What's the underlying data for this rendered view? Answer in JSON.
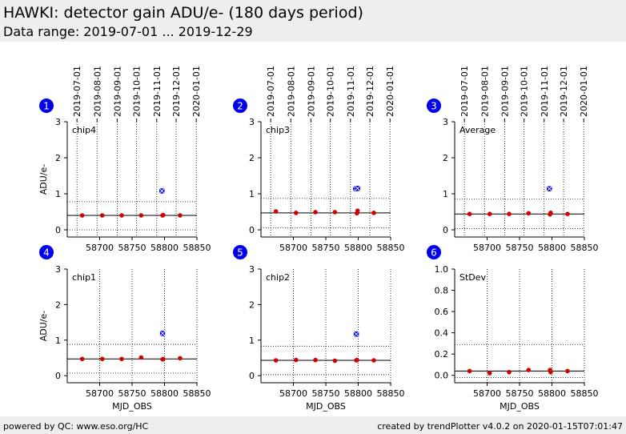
{
  "header": {
    "title": "HAWKI: detector gain ADU/e- (180 days period)",
    "subtitle": "Data range: 2019-07-01 ... 2019-12-29"
  },
  "footer": {
    "left": "powered by QC: www.eso.org/HC",
    "right": "created by trendPlotter v4.0.2 on 2020-01-15T07:01:47"
  },
  "colors": {
    "normal": "#d40000",
    "highlight": "#0000ee",
    "badge": "#0000ee",
    "header_bg": "#eeeeee"
  },
  "chart_data": [
    {
      "type": "scatter",
      "panel": 1,
      "label": "chip4",
      "ylabel": "ADU/e-",
      "xlabel": "",
      "xlim": [
        58650,
        58850
      ],
      "ylim": [
        -0.2,
        3.0
      ],
      "yticks": [
        "0",
        "1",
        "2",
        "3"
      ],
      "yticks_values": [
        0,
        1,
        2,
        3
      ],
      "xticks": [
        "58700",
        "58750",
        "58800",
        "58850"
      ],
      "xticks_values": [
        58700,
        58750,
        58800,
        58850
      ],
      "date_ticks": [
        "2019-07-01",
        "2019-08-01",
        "2019-09-01",
        "2019-10-01",
        "2019-11-01",
        "2019-12-01",
        "2020-01-01"
      ],
      "date_ticks_mjd": [
        58665,
        58696,
        58727,
        58757,
        58788,
        58818,
        58849
      ],
      "mean": 0.4,
      "limits": [
        0.0,
        0.78
      ],
      "series": [
        {
          "x": [
            58673,
            58704,
            58734,
            58764,
            58797,
            58798,
            58824
          ],
          "y": [
            0.4,
            0.4,
            0.4,
            0.4,
            0.4,
            0.41,
            0.4
          ]
        },
        {
          "x": [
            58796
          ],
          "y": [
            1.08
          ]
        }
      ]
    },
    {
      "type": "scatter",
      "panel": 2,
      "label": "chip3",
      "ylabel": "",
      "xlabel": "",
      "xlim": [
        58650,
        58850
      ],
      "ylim": [
        -0.2,
        3.0
      ],
      "yticks": [
        "0",
        "1",
        "2",
        "3"
      ],
      "yticks_values": [
        0,
        1,
        2,
        3
      ],
      "xticks": [
        "58700",
        "58750",
        "58800",
        "58850"
      ],
      "xticks_values": [
        58700,
        58750,
        58800,
        58850
      ],
      "date_ticks": [
        "2019-07-01",
        "2019-08-01",
        "2019-09-01",
        "2019-10-01",
        "2019-11-01",
        "2019-12-01",
        "2020-01-01"
      ],
      "date_ticks_mjd": [
        58665,
        58696,
        58727,
        58757,
        58788,
        58818,
        58849
      ],
      "mean": 0.47,
      "limits": [
        0.05,
        0.87
      ],
      "series": [
        {
          "x": [
            58673,
            58704,
            58734,
            58764,
            58798,
            58799,
            58824
          ],
          "y": [
            0.51,
            0.47,
            0.49,
            0.49,
            0.46,
            0.53,
            0.47
          ]
        },
        {
          "x": [
            58796,
            58799
          ],
          "y": [
            1.14,
            1.15
          ]
        }
      ]
    },
    {
      "type": "scatter",
      "panel": 3,
      "label": "Average",
      "ylabel": "",
      "xlabel": "",
      "xlim": [
        58650,
        58850
      ],
      "ylim": [
        -0.2,
        3.0
      ],
      "yticks": [
        "0",
        "1",
        "2",
        "3"
      ],
      "yticks_values": [
        0,
        1,
        2,
        3
      ],
      "xticks": [
        "58700",
        "58750",
        "58800",
        "58850"
      ],
      "xticks_values": [
        58700,
        58750,
        58800,
        58850
      ],
      "date_ticks": [
        "2019-07-01",
        "2019-08-01",
        "2019-09-01",
        "2019-10-01",
        "2019-11-01",
        "2019-12-01",
        "2020-01-01"
      ],
      "date_ticks_mjd": [
        58665,
        58696,
        58727,
        58757,
        58788,
        58818,
        58849
      ],
      "mean": 0.44,
      "limits": [
        0.03,
        0.85
      ],
      "series": [
        {
          "x": [
            58673,
            58704,
            58734,
            58764,
            58797,
            58798,
            58824
          ],
          "y": [
            0.44,
            0.44,
            0.44,
            0.46,
            0.43,
            0.47,
            0.44
          ]
        },
        {
          "x": [
            58796
          ],
          "y": [
            1.14
          ]
        }
      ]
    },
    {
      "type": "scatter",
      "panel": 4,
      "label": "chip1",
      "ylabel": "ADU/e-",
      "xlabel": "MJD_OBS",
      "xlim": [
        58650,
        58850
      ],
      "ylim": [
        -0.2,
        3.0
      ],
      "yticks": [
        "0",
        "1",
        "2",
        "3"
      ],
      "yticks_values": [
        0,
        1,
        2,
        3
      ],
      "xticks": [
        "58700",
        "58750",
        "58800",
        "58850"
      ],
      "xticks_values": [
        58700,
        58750,
        58800,
        58850
      ],
      "date_ticks": [],
      "date_ticks_mjd": [],
      "mean": 0.47,
      "limits": [
        0.07,
        0.88
      ],
      "series": [
        {
          "x": [
            58673,
            58704,
            58734,
            58764,
            58797,
            58798,
            58824
          ],
          "y": [
            0.47,
            0.47,
            0.47,
            0.51,
            0.46,
            0.47,
            0.49
          ]
        },
        {
          "x": [
            58797
          ],
          "y": [
            1.19
          ]
        }
      ]
    },
    {
      "type": "scatter",
      "panel": 5,
      "label": "chip2",
      "ylabel": "",
      "xlabel": "MJD_OBS",
      "xlim": [
        58650,
        58850
      ],
      "ylim": [
        -0.2,
        3.0
      ],
      "yticks": [
        "0",
        "1",
        "2",
        "3"
      ],
      "yticks_values": [
        0,
        1,
        2,
        3
      ],
      "xticks": [
        "58700",
        "58750",
        "58800",
        "58850"
      ],
      "xticks_values": [
        58700,
        58750,
        58800,
        58850
      ],
      "date_ticks": [],
      "date_ticks_mjd": [],
      "mean": 0.43,
      "limits": [
        0.03,
        0.83
      ],
      "series": [
        {
          "x": [
            58673,
            58704,
            58734,
            58764,
            58797,
            58798,
            58824
          ],
          "y": [
            0.43,
            0.44,
            0.44,
            0.42,
            0.43,
            0.44,
            0.43
          ]
        },
        {
          "x": [
            58797
          ],
          "y": [
            1.17
          ]
        }
      ]
    },
    {
      "type": "scatter",
      "panel": 6,
      "label": "StDev",
      "ylabel": "",
      "xlabel": "MJD_OBS",
      "xlim": [
        58650,
        58850
      ],
      "ylim": [
        -0.07,
        1.0
      ],
      "yticks": [
        "0.0",
        "0.2",
        "0.4",
        "0.6",
        "0.8",
        "1.0"
      ],
      "yticks_values": [
        0.0,
        0.2,
        0.4,
        0.6,
        0.8,
        1.0
      ],
      "xticks": [
        "58700",
        "58750",
        "58800",
        "58850"
      ],
      "xticks_values": [
        58700,
        58750,
        58800,
        58850
      ],
      "date_ticks": [],
      "date_ticks_mjd": [],
      "mean": 0.04,
      "limits": [
        -0.02,
        0.29
      ],
      "series": [
        {
          "x": [
            58673,
            58704,
            58734,
            58764,
            58797,
            58798,
            58824
          ],
          "y": [
            0.04,
            0.02,
            0.03,
            0.05,
            0.05,
            0.03,
            0.04
          ]
        }
      ]
    }
  ]
}
